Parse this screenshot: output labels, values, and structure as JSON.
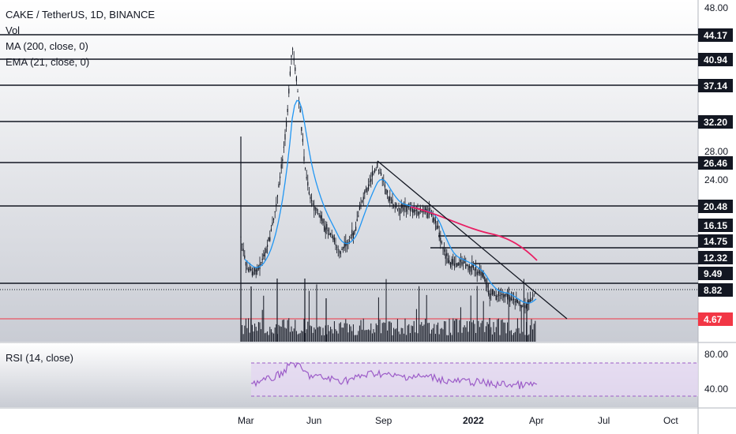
{
  "header": {
    "title": "CAKE / TetherUS, 1D, BINANCE",
    "volume_label": "Vol",
    "ma_label": "MA (200, close, 0)",
    "ema_label": "EMA (21, close, 0)"
  },
  "rsi": {
    "label": "RSI (14, close)",
    "scale_labels": [
      "80.00",
      "40.00"
    ],
    "upper_band": 70,
    "lower_band": 30
  },
  "price_axis": {
    "tick_labels": [
      "48.00",
      "28.00",
      "24.00"
    ],
    "level_tags": [
      "44.17",
      "40.94",
      "37.14",
      "32.20",
      "26.46",
      "20.48",
      "16.15",
      "14.75",
      "12.32",
      "9.49",
      "8.82"
    ],
    "current_price_tag": "4.67"
  },
  "time_axis": {
    "labels": [
      "Mar",
      "Jun",
      "Sep",
      "2022",
      "Apr",
      "Jul",
      "Oct"
    ]
  },
  "colors": {
    "candle": "#131722",
    "ema": "#2196f3",
    "ma": "#e91e63",
    "rsi_line": "#9c5cc8",
    "rsi_band": "#e3d7f1",
    "current_price": "#f23645",
    "axis_tag": "#131722",
    "background_gradient_bottom": "#d1d4dc"
  }
}
